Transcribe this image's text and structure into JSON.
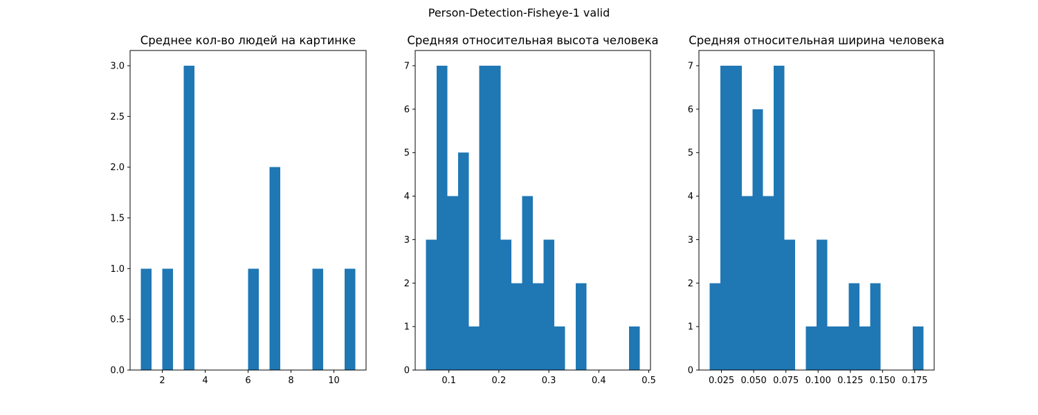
{
  "figure": {
    "title": "Person-Detection-Fisheye-1 valid"
  },
  "colors": {
    "bar": "#1f77b4",
    "axis": "#000000",
    "background": "#ffffff"
  },
  "chart_data": [
    {
      "type": "bar",
      "histogram": true,
      "title": "Среднее кол-во людей на картинке",
      "xlabel": "",
      "ylabel": "",
      "bin_range": [
        1,
        11
      ],
      "bins": 20,
      "values": [
        1,
        0,
        1,
        0,
        3,
        0,
        0,
        0,
        0,
        0,
        1,
        0,
        2,
        0,
        0,
        0,
        1,
        0,
        0,
        1
      ],
      "xlim": [
        0.5,
        11.5
      ],
      "ylim": [
        0,
        3.15
      ],
      "xticks": [
        2,
        4,
        6,
        8,
        10
      ],
      "xtick_labels": [
        "2",
        "4",
        "6",
        "8",
        "10"
      ],
      "yticks": [
        0,
        0.5,
        1,
        1.5,
        2,
        2.5,
        3
      ],
      "ytick_labels": [
        "0.0",
        "0.5",
        "1.0",
        "1.5",
        "2.0",
        "2.5",
        "3.0"
      ],
      "grid": false
    },
    {
      "type": "bar",
      "histogram": true,
      "title": "Средняя относительная высота человека",
      "xlabel": "",
      "ylabel": "",
      "bin_range": [
        0.054,
        0.482
      ],
      "bins": 20,
      "values": [
        3,
        7,
        4,
        5,
        1,
        7,
        7,
        3,
        2,
        4,
        2,
        3,
        1,
        0,
        2,
        0,
        0,
        0,
        0,
        1
      ],
      "xlim": [
        0.0326,
        0.5034
      ],
      "ylim": [
        0,
        7.35
      ],
      "xticks": [
        0.1,
        0.2,
        0.3,
        0.4,
        0.5
      ],
      "xtick_labels": [
        "0.1",
        "0.2",
        "0.3",
        "0.4",
        "0.5"
      ],
      "yticks": [
        0,
        1,
        2,
        3,
        4,
        5,
        6,
        7
      ],
      "ytick_labels": [
        "0",
        "1",
        "2",
        "3",
        "4",
        "5",
        "6",
        "7"
      ],
      "grid": false
    },
    {
      "type": "bar",
      "histogram": true,
      "title": "Средняя относительная ширина человека",
      "xlabel": "",
      "ylabel": "",
      "bin_range": [
        0.0158,
        0.1818
      ],
      "bins": 20,
      "values": [
        2,
        7,
        7,
        4,
        6,
        4,
        7,
        3,
        0,
        1,
        3,
        1,
        1,
        2,
        1,
        2,
        0,
        0,
        0,
        1
      ],
      "xlim": [
        0.0075,
        0.1901
      ],
      "ylim": [
        0,
        7.35
      ],
      "xticks": [
        0.025,
        0.05,
        0.075,
        0.1,
        0.125,
        0.15,
        0.175
      ],
      "xtick_labels": [
        "0.025",
        "0.050",
        "0.075",
        "0.100",
        "0.125",
        "0.150",
        "0.175"
      ],
      "yticks": [
        0,
        1,
        2,
        3,
        4,
        5,
        6,
        7
      ],
      "ytick_labels": [
        "0",
        "1",
        "2",
        "3",
        "4",
        "5",
        "6",
        "7"
      ],
      "grid": false
    }
  ]
}
